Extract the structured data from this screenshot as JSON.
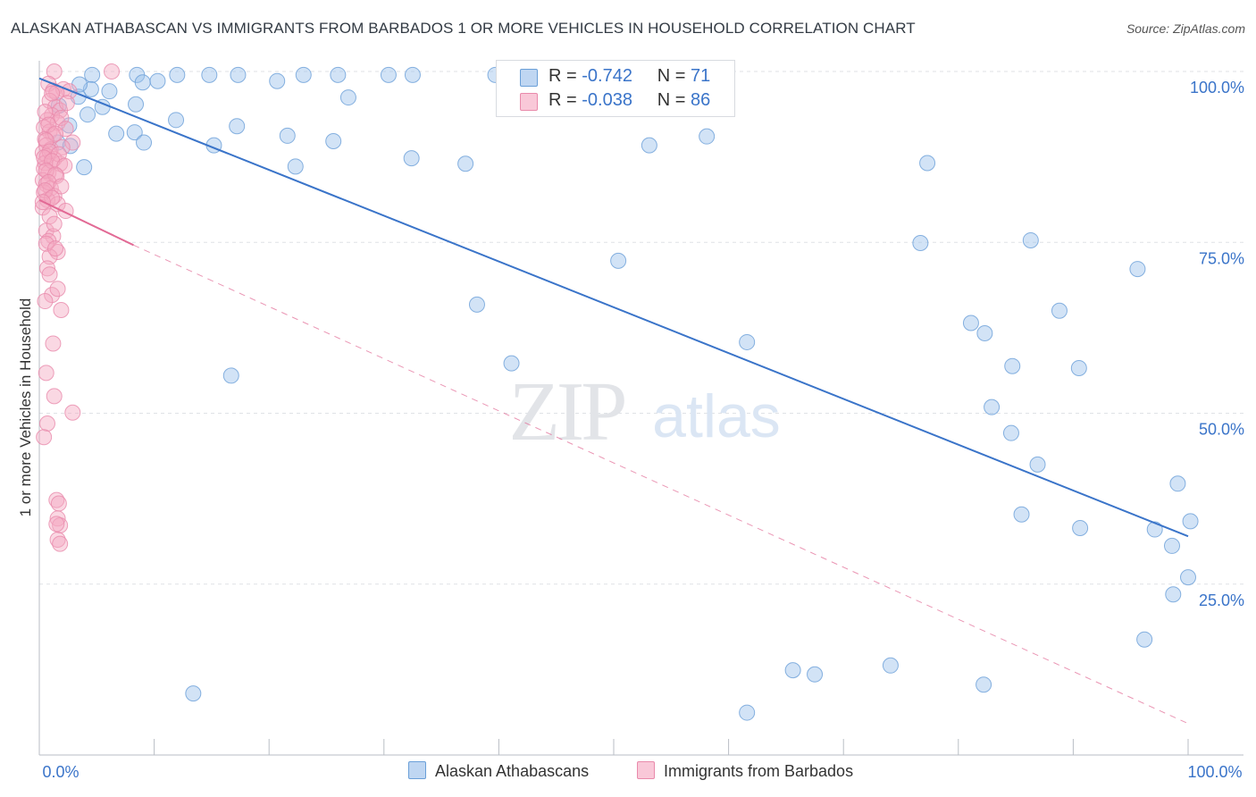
{
  "header": {
    "title": "ALASKAN ATHABASCAN VS IMMIGRANTS FROM BARBADOS 1 OR MORE VEHICLES IN HOUSEHOLD CORRELATION CHART",
    "source": "Source: ZipAtlas.com"
  },
  "watermark": {
    "zip": "ZIP",
    "atlas": "atlas"
  },
  "legend": {
    "r_label": "R =",
    "n_label": "N =",
    "rows": [
      {
        "r": "-0.742",
        "n": "71",
        "color": "#9cc1ea"
      },
      {
        "r": "-0.038",
        "n": "86",
        "color": "#f5a9c2"
      }
    ]
  },
  "chart_data": {
    "type": "scatter",
    "xlabel": "",
    "ylabel": "1 or more Vehicles in Household",
    "xlim": [
      0,
      100
    ],
    "ylim": [
      0,
      100
    ],
    "x_tick_labels": [
      "0.0%",
      "100.0%"
    ],
    "y_tick_labels": [
      "25.0%",
      "50.0%",
      "75.0%",
      "100.0%"
    ],
    "y_ticks": [
      25,
      50,
      75,
      100
    ],
    "grid": true,
    "legend_position": "bottom",
    "series": [
      {
        "name": "Alaskan Athabascans",
        "color": "#9cc1ea",
        "stroke": "#6a9fd8",
        "line_color": "#3a74c9",
        "trend": {
          "x": [
            0,
            100
          ],
          "y": [
            99,
            32
          ]
        },
        "points": [
          [
            4.6,
            99.5
          ],
          [
            8.5,
            99.5
          ],
          [
            12,
            99.5
          ],
          [
            14.8,
            99.5
          ],
          [
            17.3,
            99.5
          ],
          [
            23,
            99.5
          ],
          [
            26,
            99.5
          ],
          [
            30.4,
            99.5
          ],
          [
            32.5,
            99.5
          ],
          [
            39.7,
            99.5
          ],
          [
            9,
            98.4
          ],
          [
            10.3,
            98.6
          ],
          [
            20.7,
            98.6
          ],
          [
            4.5,
            97.4
          ],
          [
            3.4,
            96.3
          ],
          [
            26.9,
            96.2
          ],
          [
            5.5,
            94.8
          ],
          [
            1.7,
            95
          ],
          [
            4.2,
            93.7
          ],
          [
            11.9,
            92.9
          ],
          [
            2.6,
            92.1
          ],
          [
            17.2,
            92
          ],
          [
            8.3,
            91.1
          ],
          [
            6.7,
            90.9
          ],
          [
            21.6,
            90.6
          ],
          [
            25.6,
            89.8
          ],
          [
            1.6,
            89.6
          ],
          [
            9.1,
            89.6
          ],
          [
            15.2,
            89.2
          ],
          [
            2.7,
            89.1
          ],
          [
            53.1,
            89.2
          ],
          [
            58.1,
            90.5
          ],
          [
            32.4,
            87.3
          ],
          [
            77.3,
            86.6
          ],
          [
            37.1,
            86.5
          ],
          [
            22.3,
            86.1
          ],
          [
            3.9,
            86
          ],
          [
            76.7,
            74.9
          ],
          [
            86.3,
            75.3
          ],
          [
            50.4,
            72.3
          ],
          [
            95.6,
            71.1
          ],
          [
            38.1,
            65.9
          ],
          [
            88.8,
            65
          ],
          [
            81.1,
            63.2
          ],
          [
            82.3,
            61.7
          ],
          [
            61.6,
            60.4
          ],
          [
            41.1,
            57.3
          ],
          [
            84.7,
            56.9
          ],
          [
            90.5,
            56.6
          ],
          [
            16.7,
            55.5
          ],
          [
            82.9,
            50.9
          ],
          [
            84.6,
            47.1
          ],
          [
            86.9,
            42.5
          ],
          [
            99.1,
            39.7
          ],
          [
            85.5,
            35.2
          ],
          [
            100.2,
            34.2
          ],
          [
            90.6,
            33.2
          ],
          [
            97.1,
            33
          ],
          [
            98.6,
            30.6
          ],
          [
            100,
            26
          ],
          [
            98.7,
            23.5
          ],
          [
            96.2,
            16.9
          ],
          [
            65.6,
            12.4
          ],
          [
            67.5,
            11.8
          ],
          [
            74.1,
            13.1
          ],
          [
            82.2,
            10.3
          ],
          [
            13.4,
            9
          ],
          [
            61.6,
            6.2
          ],
          [
            3.5,
            98.1
          ],
          [
            6.1,
            97.1
          ],
          [
            8.4,
            95.2
          ]
        ]
      },
      {
        "name": "Immigrants from Barbados",
        "color": "#f5a9c2",
        "stroke": "#e98aab",
        "line_color": "#e26a95",
        "trend": {
          "x": [
            0,
            8.2
          ],
          "y": [
            81.2,
            74.6
          ]
        },
        "trend_dashed": {
          "x": [
            8.2,
            100
          ],
          "y": [
            74.6,
            4.6
          ]
        },
        "points": [
          [
            1.3,
            100
          ],
          [
            6.3,
            100
          ],
          [
            0.8,
            98.2
          ],
          [
            1.2,
            97.2
          ],
          [
            2.1,
            97.4
          ],
          [
            2.6,
            97.1
          ],
          [
            1.5,
            96.9
          ],
          [
            0.9,
            95.7
          ],
          [
            1.4,
            94.8
          ],
          [
            1.8,
            94.3
          ],
          [
            1.1,
            93.6
          ],
          [
            0.7,
            92.9
          ],
          [
            1.6,
            92.5
          ],
          [
            0.4,
            91.8
          ],
          [
            0.9,
            91.2
          ],
          [
            1.2,
            90.7
          ],
          [
            0.5,
            90.1
          ],
          [
            2.9,
            89.6
          ],
          [
            0.6,
            89.2
          ],
          [
            1,
            88.6
          ],
          [
            0.3,
            88.1
          ],
          [
            0.7,
            87.6
          ],
          [
            1.3,
            87.2
          ],
          [
            0.5,
            86.6
          ],
          [
            1.8,
            86.5
          ],
          [
            0.4,
            85.8
          ],
          [
            0.8,
            85.2
          ],
          [
            1.5,
            84.7
          ],
          [
            0.3,
            84.1
          ],
          [
            0.6,
            83.5
          ],
          [
            1,
            82.9
          ],
          [
            0.4,
            82.3
          ],
          [
            1.3,
            81.8
          ],
          [
            0.7,
            81.2
          ],
          [
            1.6,
            80.6
          ],
          [
            0.3,
            80.1
          ],
          [
            0.6,
            76.7
          ],
          [
            1.2,
            75.9
          ],
          [
            0.8,
            75.2
          ],
          [
            1.6,
            73.6
          ],
          [
            0.9,
            72.9
          ],
          [
            0.7,
            71.2
          ],
          [
            1.1,
            67.3
          ],
          [
            1.9,
            65.1
          ],
          [
            1.2,
            60.2
          ],
          [
            0.6,
            55.9
          ],
          [
            1.3,
            52.5
          ],
          [
            2.9,
            50.1
          ],
          [
            0.7,
            48.5
          ],
          [
            0.4,
            46.5
          ],
          [
            1.5,
            37.3
          ],
          [
            1.7,
            36.8
          ],
          [
            1.6,
            34.6
          ],
          [
            1.8,
            33.6
          ],
          [
            1.5,
            33.8
          ],
          [
            1.6,
            31.5
          ],
          [
            1.8,
            30.9
          ],
          [
            1.1,
            96.8
          ],
          [
            2.4,
            95.4
          ],
          [
            0.5,
            94.1
          ],
          [
            1.9,
            93.2
          ],
          [
            0.8,
            92.2
          ],
          [
            2.3,
            91.6
          ],
          [
            1.4,
            90.9
          ],
          [
            0.6,
            89.9
          ],
          [
            2,
            88.9
          ],
          [
            0.9,
            88.3
          ],
          [
            1.7,
            87.9
          ],
          [
            0.4,
            87.4
          ],
          [
            1.1,
            86.9
          ],
          [
            2.2,
            86.2
          ],
          [
            0.6,
            85.5
          ],
          [
            1.4,
            84.9
          ],
          [
            0.8,
            83.8
          ],
          [
            1.9,
            83.2
          ],
          [
            0.5,
            82.6
          ],
          [
            1.1,
            81.5
          ],
          [
            0.3,
            80.9
          ],
          [
            2.3,
            79.6
          ],
          [
            0.9,
            78.8
          ],
          [
            1.3,
            77.7
          ],
          [
            0.6,
            74.8
          ],
          [
            1.4,
            74.1
          ],
          [
            0.9,
            70.3
          ],
          [
            1.6,
            68.2
          ],
          [
            0.5,
            66.4
          ]
        ]
      }
    ]
  }
}
